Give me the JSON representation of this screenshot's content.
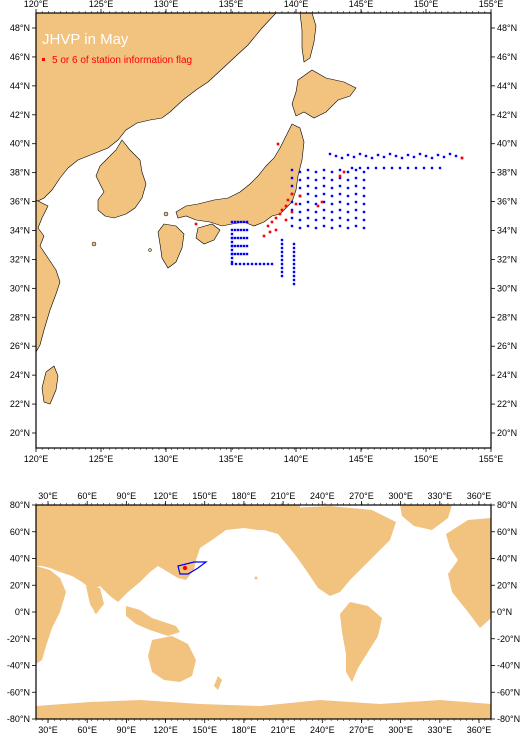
{
  "map_top": {
    "title": "JHVP in May",
    "legend_label": "5 or 6 of station information flag",
    "lon_range": [
      120,
      157
    ],
    "lat_range": [
      19,
      48
    ],
    "x_ticks": [
      "120°E",
      "125°E",
      "130°E",
      "135°E",
      "140°E",
      "145°E",
      "150°E",
      "155°E"
    ],
    "y_ticks": [
      "20°N",
      "22°N",
      "24°N",
      "26°N",
      "28°N",
      "30°N",
      "32°N",
      "34°N",
      "36°N",
      "38°N",
      "40°N",
      "42°N",
      "44°N",
      "46°N",
      "48°N"
    ]
  },
  "map_bottom": {
    "lon_range": [
      20,
      370
    ],
    "lat_range": [
      -80,
      80
    ],
    "x_ticks": [
      "30°E",
      "60°E",
      "90°E",
      "120°E",
      "150°E",
      "180°E",
      "210°E",
      "240°E",
      "270°E",
      "300°E",
      "330°E",
      "360°E"
    ],
    "y_ticks": [
      "-80°N",
      "-60°N",
      "-40°N",
      "-20°N",
      "0°N",
      "20°N",
      "40°N",
      "60°N",
      "80°N"
    ]
  },
  "colors": {
    "land": "#f2c27f",
    "ocean": "#ffffff",
    "station_normal": "#0000ff",
    "station_flagged": "#ff0000"
  }
}
